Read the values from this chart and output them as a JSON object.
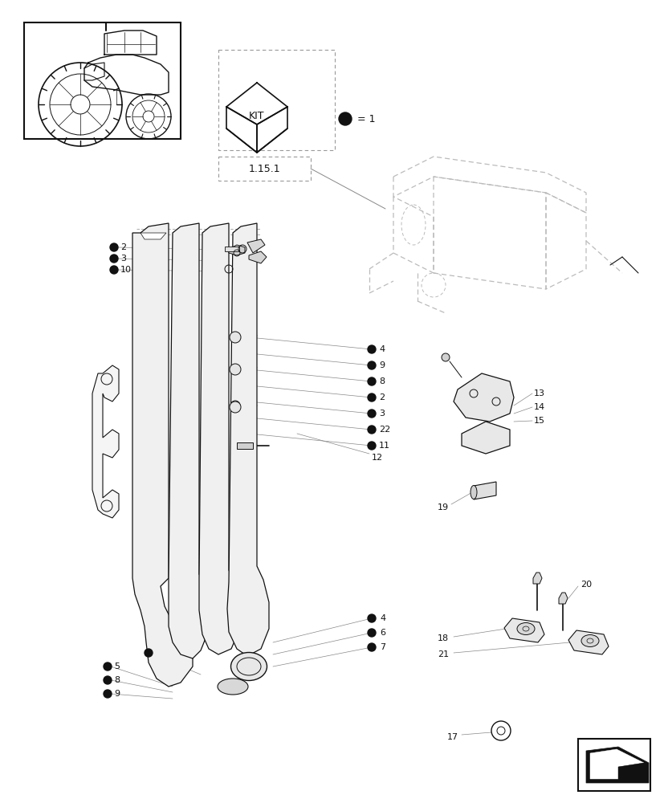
{
  "bg_color": "#ffffff",
  "fig_width": 8.28,
  "fig_height": 10.0,
  "dpi": 100,
  "line_color": "#aaaaaa",
  "dark": "#111111",
  "gray": "#888888",
  "light_gray": "#cccccc",
  "mid_gray": "#666666"
}
